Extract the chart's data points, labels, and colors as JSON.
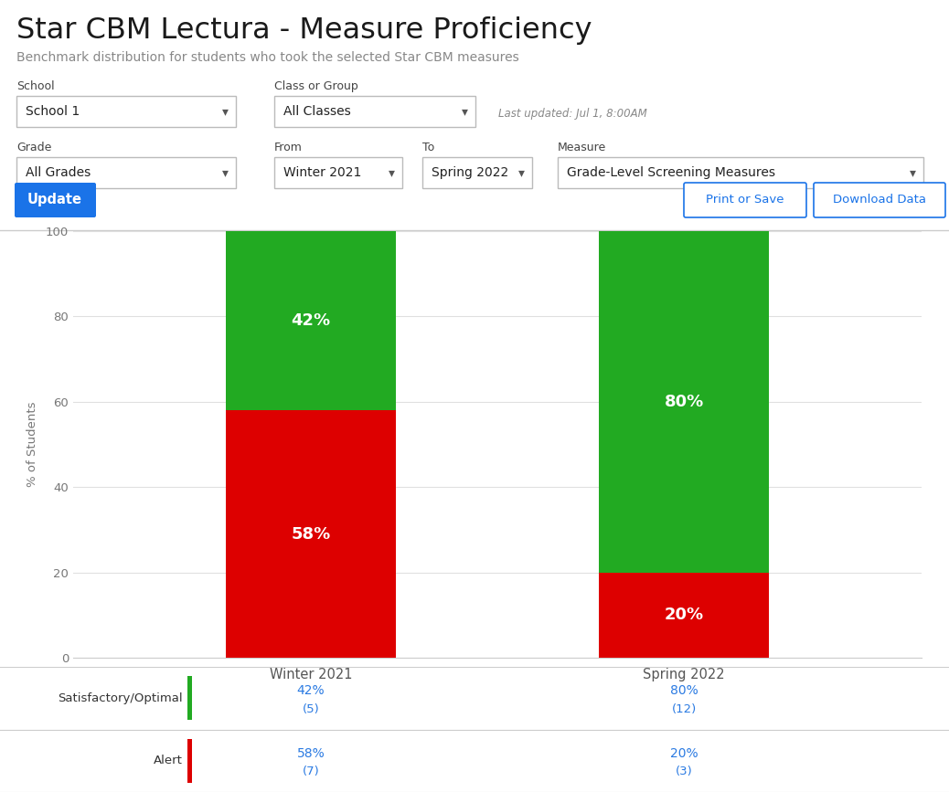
{
  "title": "Star CBM Lectura - Measure Proficiency",
  "subtitle": "Benchmark distribution for students who took the selected Star CBM measures",
  "title_color": "#1a1a1a",
  "subtitle_color": "#888888",
  "last_updated": "Last updated: Jul 1, 8:00AM",
  "seasons": [
    "Winter 2021",
    "Spring 2022"
  ],
  "satisfactory_pct": [
    42,
    80
  ],
  "alert_pct": [
    58,
    20
  ],
  "satisfactory_n": [
    5,
    12
  ],
  "alert_n": [
    7,
    3
  ],
  "green_color": "#22aa22",
  "red_color": "#dd0000",
  "bar_label_fontsize": 13,
  "grid_color": "#e0e0e0",
  "table_text_color": "#2a7ae2",
  "ylabel": "% of Students",
  "ylim": [
    0,
    100
  ],
  "yticks": [
    0,
    20,
    40,
    60,
    80,
    100
  ],
  "update_btn_color": "#1a73e8",
  "btn_border_color": "#1a73e8",
  "dropdown_border": "#bbbbbb",
  "label_color": "#444444",
  "school_val": "School 1",
  "class_val": "All Classes",
  "grade_val": "All Grades",
  "from_val": "Winter 2021",
  "to_val": "Spring 2022",
  "measure_val": "Grade-Level Screening Measures",
  "fig_width": 10.38,
  "fig_height": 8.67
}
